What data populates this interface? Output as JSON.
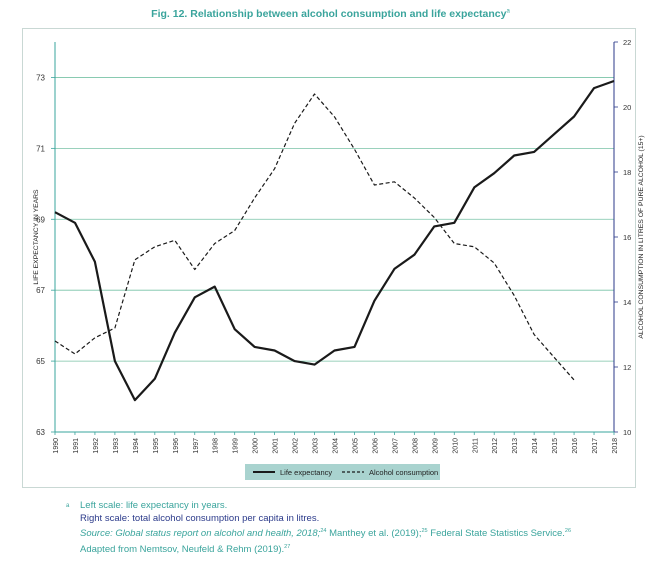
{
  "title": "Fig. 12. Relationship between alcohol consumption and life expectancy",
  "title_note_mark": "a",
  "chart_data": {
    "type": "line",
    "x": [
      1990,
      1991,
      1992,
      1993,
      1994,
      1995,
      1996,
      1997,
      1998,
      1999,
      2000,
      2001,
      2002,
      2003,
      2004,
      2005,
      2006,
      2007,
      2008,
      2009,
      2010,
      2011,
      2012,
      2013,
      2014,
      2015,
      2016,
      2017,
      2018
    ],
    "x_tick_labels": [
      "1990",
      "1991",
      "1992",
      "1993",
      "1994",
      "1995",
      "1996",
      "1997",
      "1998",
      "1999",
      "2000",
      "2001",
      "2002",
      "2003",
      "2004",
      "2005",
      "2006",
      "2007",
      "2008",
      "2009",
      "2010",
      "2011",
      "2012",
      "2013",
      "2014",
      "2015",
      "2016",
      "2017",
      "2018"
    ],
    "xlim": [
      1990,
      2018
    ],
    "left_axis": {
      "label": "LIFE EXPECTANCY IN YEARS",
      "ylim": [
        63,
        74
      ],
      "ticks": [
        63,
        65,
        67,
        69,
        71,
        73
      ]
    },
    "right_axis": {
      "label": "ALCOHOL CONSUMPTION IN LITRES OF PURE ALCOHOL (15+)",
      "ylim": [
        10,
        22
      ],
      "ticks": [
        10,
        12,
        14,
        16,
        18,
        20,
        22
      ]
    },
    "grid": "horizontal",
    "legend_position": "bottom",
    "series": [
      {
        "name": "Life expectancy",
        "axis": "left",
        "style": "solid",
        "color": "#1a1a1a",
        "x": [
          1990,
          1991,
          1992,
          1993,
          1994,
          1995,
          1996,
          1997,
          1998,
          1999,
          2000,
          2001,
          2002,
          2003,
          2004,
          2005,
          2006,
          2007,
          2008,
          2009,
          2010,
          2011,
          2012,
          2013,
          2014,
          2015,
          2016,
          2017,
          2018
        ],
        "values": [
          69.2,
          68.9,
          67.8,
          65.0,
          63.9,
          64.5,
          65.8,
          66.8,
          67.1,
          65.9,
          65.4,
          65.3,
          65.0,
          64.9,
          65.3,
          65.4,
          66.7,
          67.6,
          68.0,
          68.8,
          68.9,
          69.9,
          70.3,
          70.8,
          70.9,
          71.4,
          71.9,
          72.7,
          72.9
        ]
      },
      {
        "name": "Alcohol consumption",
        "axis": "right",
        "style": "dashed",
        "color": "#1a1a1a",
        "x": [
          1990,
          1991,
          1992,
          1993,
          1994,
          1995,
          1996,
          1997,
          1998,
          1999,
          2000,
          2001,
          2002,
          2003,
          2004,
          2005,
          2006,
          2007,
          2008,
          2009,
          2010,
          2011,
          2012,
          2013,
          2014,
          2015,
          2016
        ],
        "values": [
          12.8,
          12.4,
          12.9,
          13.2,
          15.3,
          15.7,
          15.9,
          15.0,
          15.8,
          16.2,
          17.2,
          18.1,
          19.5,
          20.4,
          19.7,
          18.7,
          17.6,
          17.7,
          17.2,
          16.6,
          15.8,
          15.7,
          15.2,
          14.2,
          13.0,
          12.3,
          11.6
        ]
      }
    ]
  },
  "legend": {
    "life_label": "Life expectancy",
    "alcohol_label": "Alcohol consumption"
  },
  "notes": {
    "marker": "a",
    "line1": "Left scale: life expectancy in years.",
    "line2": "Right scale: total alcohol consumption per capita in litres.",
    "line3_source": "Source: Global status report on alcohol and health, 2018;",
    "line3_ref1": "24",
    "line3_mid": " Manthey et al. (2019);",
    "line3_ref2": "25",
    "line3_end": " Federal State Statistics Service.",
    "line3_ref3": "26",
    "line4": "Adapted from Nemtsov, Neufeld & Rehm (2019).",
    "line4_ref": "27"
  },
  "colors": {
    "accent": "#3aa49c",
    "grid": "#78c2a6",
    "axis": "#3aa49c",
    "right_axis": "#2b3a8a",
    "navy": "#2b3a8a",
    "legend_bg": "#a9d3cf"
  }
}
